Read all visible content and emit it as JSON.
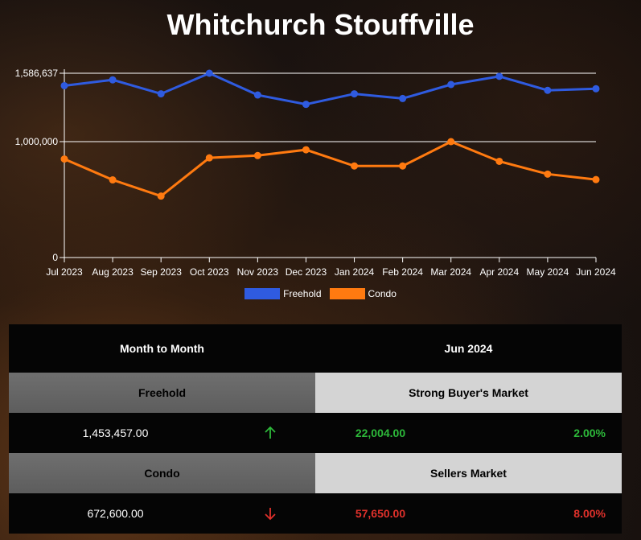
{
  "title": "Whitchurch Stouffville",
  "chart_data": {
    "type": "line",
    "categories": [
      "Jul 2023",
      "Aug 2023",
      "Sep 2023",
      "Oct 2023",
      "Nov 2023",
      "Dec 2023",
      "Jan 2024",
      "Feb 2024",
      "Mar 2024",
      "Apr 2024",
      "May 2024",
      "Jun 2024"
    ],
    "y_ticks": [
      "1,586,637",
      "1,000,000",
      "0"
    ],
    "y_tick_values": [
      1586637,
      1000000,
      0
    ],
    "y_scale_points": [
      [
        0,
        0
      ],
      [
        1000000,
        1000000
      ],
      [
        1586637,
        1586637
      ]
    ],
    "ylim": [
      0,
      1586637
    ],
    "series": [
      {
        "name": "Freehold",
        "color": "#2f5be0",
        "values": [
          1480000,
          1530000,
          1410000,
          1586637,
          1400000,
          1320000,
          1410000,
          1370000,
          1490000,
          1560000,
          1440000,
          1453457
        ]
      },
      {
        "name": "Condo",
        "color": "#ff7a10",
        "values": [
          850000,
          670000,
          530000,
          860000,
          880000,
          930000,
          790000,
          790000,
          1000000,
          830000,
          720000,
          672600
        ]
      }
    ],
    "legend_position": "bottom",
    "grid": true
  },
  "table": {
    "header_left": "Month to Month",
    "header_right": "Jun 2024",
    "rows": [
      {
        "category": "Freehold",
        "market": "Strong Buyer's Market",
        "price": "1,453,457.00",
        "change": "22,004.00",
        "pct": "2.00%",
        "arrow_icon": "arrow-up-icon",
        "direction": "up"
      },
      {
        "category": "Condo",
        "market": "Sellers Market",
        "price": "672,600.00",
        "change": "57,650.00",
        "pct": "8.00%",
        "arrow_icon": "arrow-down-icon",
        "direction": "down"
      }
    ],
    "up_color": "#2db93a",
    "down_color": "#e0312b"
  }
}
